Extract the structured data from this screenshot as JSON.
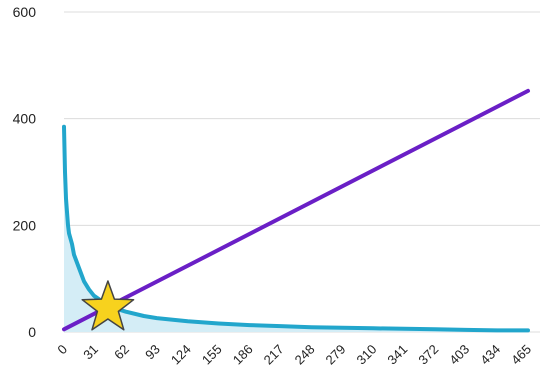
{
  "chart_data": {
    "type": "line",
    "title": "",
    "xlabel": "",
    "ylabel": "",
    "xlim": [
      0,
      465
    ],
    "ylim": [
      0,
      600
    ],
    "grid": true,
    "legend": "none",
    "y_ticks": [
      "0",
      "200",
      "400",
      "600"
    ],
    "x_ticks": [
      "0",
      "31",
      "62",
      "93",
      "124",
      "155",
      "186",
      "217",
      "248",
      "279",
      "310",
      "341",
      "372",
      "403",
      "434",
      "465"
    ],
    "series": [
      {
        "kind": "area",
        "color": "#22a6cc",
        "fill_color": "#d4edf6",
        "points": [
          [
            0,
            385
          ],
          [
            1,
            300
          ],
          [
            2,
            250
          ],
          [
            3,
            225
          ],
          [
            4,
            200
          ],
          [
            5,
            185
          ],
          [
            8,
            165
          ],
          [
            10,
            145
          ],
          [
            15,
            120
          ],
          [
            20,
            95
          ],
          [
            25,
            80
          ],
          [
            30,
            68
          ],
          [
            40,
            55
          ],
          [
            50,
            45
          ],
          [
            62,
            38
          ],
          [
            80,
            30
          ],
          [
            93,
            26
          ],
          [
            124,
            20
          ],
          [
            155,
            16
          ],
          [
            186,
            13
          ],
          [
            217,
            11
          ],
          [
            248,
            9
          ],
          [
            279,
            8
          ],
          [
            310,
            7
          ],
          [
            341,
            6
          ],
          [
            372,
            5
          ],
          [
            403,
            4
          ],
          [
            434,
            3
          ],
          [
            465,
            3
          ]
        ]
      },
      {
        "kind": "line",
        "color": "#6a1fc6",
        "points": [
          [
            0,
            5
          ],
          [
            465,
            452
          ]
        ]
      }
    ],
    "marker": {
      "shape": "star",
      "x": 44,
      "y": 45,
      "color": "#f7d21e",
      "stroke": "#444444"
    }
  }
}
